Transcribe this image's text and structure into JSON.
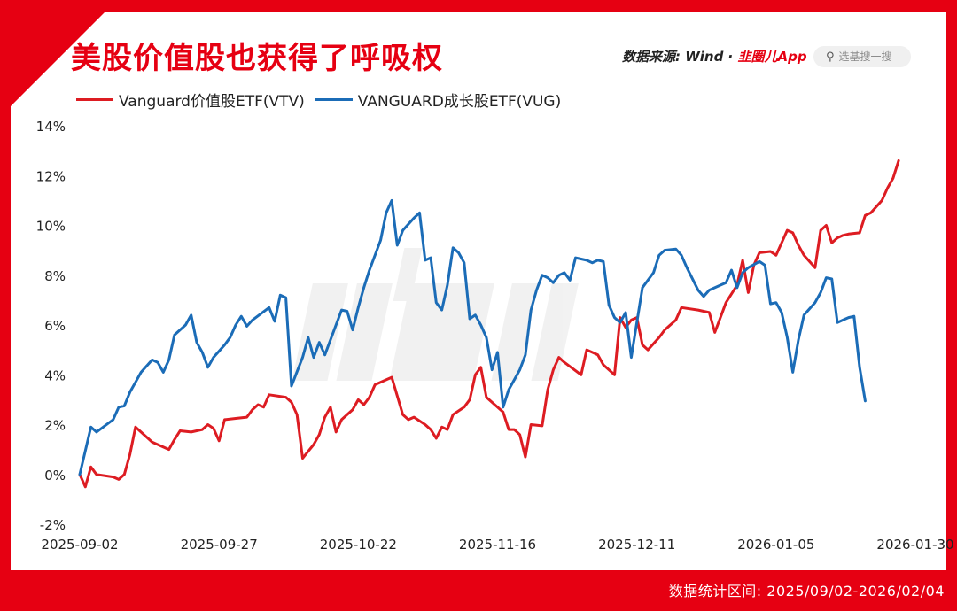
{
  "header": {
    "title": "美股价值股也获得了呼吸权",
    "source_prefix": "数据来源: Wind · ",
    "source_brand": "韭圈儿App",
    "search_placeholder": "选基搜一搜",
    "search_icon": "search-icon"
  },
  "footer": {
    "range_text": "数据统计区间: 2025/09/02-2026/02/04"
  },
  "colors": {
    "brand_red": "#e60012",
    "vtv": "#dd1c22",
    "vug": "#1b6cb7"
  },
  "chart_data": {
    "type": "line",
    "x_ticks": [
      "2025-09-02",
      "2025-09-27",
      "2025-10-22",
      "2025-11-16",
      "2025-12-11",
      "2026-01-05",
      "2026-01-30"
    ],
    "y_ticks": [
      "14%",
      "12%",
      "10%",
      "8%",
      "6%",
      "4%",
      "2%",
      "0%",
      "-2%"
    ],
    "ylim": [
      -2,
      14
    ],
    "x_range": [
      "2025-09-02",
      "2026-01-30"
    ],
    "grid": false,
    "legend_position": "top-left",
    "series": [
      {
        "name": "Vanguard价值股ETF(VTV)",
        "color": "#dd1c22",
        "points": [
          [
            "2025-09-02",
            0.0
          ],
          [
            "2025-09-03",
            -0.5
          ],
          [
            "2025-09-04",
            0.3
          ],
          [
            "2025-09-05",
            0.0
          ],
          [
            "2025-09-08",
            -0.1
          ],
          [
            "2025-09-09",
            -0.2
          ],
          [
            "2025-09-10",
            0.0
          ],
          [
            "2025-09-11",
            0.8
          ],
          [
            "2025-09-12",
            1.9
          ],
          [
            "2025-09-15",
            1.3
          ],
          [
            "2025-09-18",
            1.0
          ],
          [
            "2025-09-19",
            1.4
          ],
          [
            "2025-09-20",
            1.75
          ],
          [
            "2025-09-22",
            1.7
          ],
          [
            "2025-09-24",
            1.8
          ],
          [
            "2025-09-25",
            2.0
          ],
          [
            "2025-09-26",
            1.85
          ],
          [
            "2025-09-27",
            1.35
          ],
          [
            "2025-09-28",
            2.2
          ],
          [
            "2025-09-30",
            2.25
          ],
          [
            "2025-10-02",
            2.3
          ],
          [
            "2025-10-03",
            2.6
          ],
          [
            "2025-10-04",
            2.8
          ],
          [
            "2025-10-05",
            2.7
          ],
          [
            "2025-10-06",
            3.2
          ],
          [
            "2025-10-09",
            3.1
          ],
          [
            "2025-10-10",
            2.9
          ],
          [
            "2025-10-11",
            2.4
          ],
          [
            "2025-10-12",
            0.65
          ],
          [
            "2025-10-14",
            1.2
          ],
          [
            "2025-10-15",
            1.6
          ],
          [
            "2025-10-16",
            2.3
          ],
          [
            "2025-10-17",
            2.7
          ],
          [
            "2025-10-18",
            1.7
          ],
          [
            "2025-10-19",
            2.2
          ],
          [
            "2025-10-21",
            2.6
          ],
          [
            "2025-10-22",
            3.0
          ],
          [
            "2025-10-23",
            2.8
          ],
          [
            "2025-10-24",
            3.1
          ],
          [
            "2025-10-25",
            3.6
          ],
          [
            "2025-10-27",
            3.8
          ],
          [
            "2025-10-28",
            3.9
          ],
          [
            "2025-10-30",
            2.4
          ],
          [
            "2025-10-31",
            2.2
          ],
          [
            "2025-11-01",
            2.3
          ],
          [
            "2025-11-03",
            2.0
          ],
          [
            "2025-11-04",
            1.8
          ],
          [
            "2025-11-05",
            1.45
          ],
          [
            "2025-11-06",
            1.9
          ],
          [
            "2025-11-07",
            1.8
          ],
          [
            "2025-11-08",
            2.4
          ],
          [
            "2025-11-10",
            2.7
          ],
          [
            "2025-11-11",
            3.0
          ],
          [
            "2025-11-12",
            4.0
          ],
          [
            "2025-11-13",
            4.3
          ],
          [
            "2025-11-14",
            3.1
          ],
          [
            "2025-11-15",
            2.9
          ],
          [
            "2025-11-17",
            2.5
          ],
          [
            "2025-11-18",
            1.8
          ],
          [
            "2025-11-19",
            1.8
          ],
          [
            "2025-11-20",
            1.6
          ],
          [
            "2025-11-21",
            0.7
          ],
          [
            "2025-11-22",
            2.0
          ],
          [
            "2025-11-24",
            1.95
          ],
          [
            "2025-11-25",
            3.4
          ],
          [
            "2025-11-26",
            4.2
          ],
          [
            "2025-11-27",
            4.7
          ],
          [
            "2025-11-28",
            4.5
          ],
          [
            "2025-12-01",
            4.0
          ],
          [
            "2025-12-02",
            5.0
          ],
          [
            "2025-12-03",
            4.9
          ],
          [
            "2025-12-04",
            4.8
          ],
          [
            "2025-12-05",
            4.4
          ],
          [
            "2025-12-06",
            4.2
          ],
          [
            "2025-12-07",
            4.0
          ],
          [
            "2025-12-08",
            6.3
          ],
          [
            "2025-12-09",
            5.9
          ],
          [
            "2025-12-10",
            6.2
          ],
          [
            "2025-12-11",
            6.3
          ],
          [
            "2025-12-12",
            5.2
          ],
          [
            "2025-12-13",
            5.0
          ],
          [
            "2025-12-15",
            5.5
          ],
          [
            "2025-12-16",
            5.8
          ],
          [
            "2025-12-17",
            6.0
          ],
          [
            "2025-12-18",
            6.2
          ],
          [
            "2025-12-19",
            6.7
          ],
          [
            "2025-12-22",
            6.6
          ],
          [
            "2025-12-24",
            6.5
          ],
          [
            "2025-12-25",
            5.7
          ],
          [
            "2025-12-26",
            6.3
          ],
          [
            "2025-12-27",
            6.9
          ],
          [
            "2025-12-29",
            7.6
          ],
          [
            "2025-12-30",
            8.6
          ],
          [
            "2025-12-31",
            7.3
          ],
          [
            "2026-01-01",
            8.4
          ],
          [
            "2026-01-02",
            8.9
          ],
          [
            "2026-01-04",
            8.95
          ],
          [
            "2026-01-05",
            8.8
          ],
          [
            "2026-01-06",
            9.3
          ],
          [
            "2026-01-07",
            9.8
          ],
          [
            "2026-01-08",
            9.7
          ],
          [
            "2026-01-09",
            9.2
          ],
          [
            "2026-01-10",
            8.8
          ],
          [
            "2026-01-12",
            8.3
          ],
          [
            "2026-01-13",
            9.8
          ],
          [
            "2026-01-14",
            10.0
          ],
          [
            "2026-01-15",
            9.3
          ],
          [
            "2026-01-16",
            9.5
          ],
          [
            "2026-01-17",
            9.6
          ],
          [
            "2026-01-18",
            9.65
          ],
          [
            "2026-01-20",
            9.7
          ],
          [
            "2026-01-21",
            10.4
          ],
          [
            "2026-01-22",
            10.5
          ],
          [
            "2026-01-24",
            11.0
          ],
          [
            "2026-01-25",
            11.5
          ],
          [
            "2026-01-26",
            11.9
          ],
          [
            "2026-01-27",
            12.6
          ]
        ]
      },
      {
        "name": "VANGUARD成长股ETF(VUG)",
        "color": "#1b6cb7",
        "points": [
          [
            "2025-09-02",
            0.0
          ],
          [
            "2025-09-04",
            1.9
          ],
          [
            "2025-09-05",
            1.7
          ],
          [
            "2025-09-08",
            2.2
          ],
          [
            "2025-09-09",
            2.7
          ],
          [
            "2025-09-10",
            2.75
          ],
          [
            "2025-09-11",
            3.3
          ],
          [
            "2025-09-12",
            3.7
          ],
          [
            "2025-09-13",
            4.1
          ],
          [
            "2025-09-15",
            4.6
          ],
          [
            "2025-09-16",
            4.5
          ],
          [
            "2025-09-17",
            4.1
          ],
          [
            "2025-09-18",
            4.6
          ],
          [
            "2025-09-19",
            5.6
          ],
          [
            "2025-09-21",
            6.0
          ],
          [
            "2025-09-22",
            6.4
          ],
          [
            "2025-09-23",
            5.3
          ],
          [
            "2025-09-24",
            4.9
          ],
          [
            "2025-09-25",
            4.3
          ],
          [
            "2025-09-26",
            4.7
          ],
          [
            "2025-09-28",
            5.2
          ],
          [
            "2025-09-29",
            5.5
          ],
          [
            "2025-09-30",
            6.0
          ],
          [
            "2025-10-01",
            6.35
          ],
          [
            "2025-10-02",
            5.95
          ],
          [
            "2025-10-03",
            6.2
          ],
          [
            "2025-10-06",
            6.7
          ],
          [
            "2025-10-07",
            6.15
          ],
          [
            "2025-10-08",
            7.2
          ],
          [
            "2025-10-09",
            7.1
          ],
          [
            "2025-10-10",
            3.55
          ],
          [
            "2025-10-12",
            4.7
          ],
          [
            "2025-10-13",
            5.5
          ],
          [
            "2025-10-14",
            4.7
          ],
          [
            "2025-10-15",
            5.3
          ],
          [
            "2025-10-16",
            4.8
          ],
          [
            "2025-10-17",
            5.4
          ],
          [
            "2025-10-19",
            6.6
          ],
          [
            "2025-10-20",
            6.55
          ],
          [
            "2025-10-21",
            5.8
          ],
          [
            "2025-10-22",
            6.7
          ],
          [
            "2025-10-23",
            7.5
          ],
          [
            "2025-10-24",
            8.2
          ],
          [
            "2025-10-26",
            9.4
          ],
          [
            "2025-10-27",
            10.5
          ],
          [
            "2025-10-28",
            11.0
          ],
          [
            "2025-10-29",
            9.2
          ],
          [
            "2025-10-30",
            9.8
          ],
          [
            "2025-11-01",
            10.3
          ],
          [
            "2025-11-02",
            10.5
          ],
          [
            "2025-11-03",
            8.6
          ],
          [
            "2025-11-04",
            8.7
          ],
          [
            "2025-11-05",
            6.9
          ],
          [
            "2025-11-06",
            6.6
          ],
          [
            "2025-11-07",
            7.6
          ],
          [
            "2025-11-08",
            9.1
          ],
          [
            "2025-11-09",
            8.9
          ],
          [
            "2025-11-10",
            8.5
          ],
          [
            "2025-11-11",
            6.25
          ],
          [
            "2025-11-12",
            6.4
          ],
          [
            "2025-11-13",
            6.0
          ],
          [
            "2025-11-14",
            5.5
          ],
          [
            "2025-11-15",
            4.2
          ],
          [
            "2025-11-16",
            4.9
          ],
          [
            "2025-11-17",
            2.7
          ],
          [
            "2025-11-18",
            3.4
          ],
          [
            "2025-11-19",
            3.8
          ],
          [
            "2025-11-20",
            4.2
          ],
          [
            "2025-11-21",
            4.8
          ],
          [
            "2025-11-22",
            6.6
          ],
          [
            "2025-11-23",
            7.4
          ],
          [
            "2025-11-24",
            8.0
          ],
          [
            "2025-11-25",
            7.9
          ],
          [
            "2025-11-26",
            7.7
          ],
          [
            "2025-11-27",
            8.0
          ],
          [
            "2025-11-28",
            8.1
          ],
          [
            "2025-11-29",
            7.8
          ],
          [
            "2025-11-30",
            8.7
          ],
          [
            "2025-12-02",
            8.6
          ],
          [
            "2025-12-03",
            8.5
          ],
          [
            "2025-12-04",
            8.6
          ],
          [
            "2025-12-05",
            8.55
          ],
          [
            "2025-12-06",
            6.8
          ],
          [
            "2025-12-07",
            6.3
          ],
          [
            "2025-12-08",
            6.1
          ],
          [
            "2025-12-09",
            6.5
          ],
          [
            "2025-12-10",
            4.7
          ],
          [
            "2025-12-12",
            7.5
          ],
          [
            "2025-12-13",
            7.8
          ],
          [
            "2025-12-14",
            8.1
          ],
          [
            "2025-12-15",
            8.8
          ],
          [
            "2025-12-16",
            9.0
          ],
          [
            "2025-12-18",
            9.05
          ],
          [
            "2025-12-19",
            8.8
          ],
          [
            "2025-12-20",
            8.3
          ],
          [
            "2025-12-22",
            7.4
          ],
          [
            "2025-12-23",
            7.15
          ],
          [
            "2025-12-24",
            7.4
          ],
          [
            "2025-12-26",
            7.6
          ],
          [
            "2025-12-27",
            7.7
          ],
          [
            "2025-12-28",
            8.2
          ],
          [
            "2025-12-29",
            7.5
          ],
          [
            "2025-12-30",
            8.1
          ],
          [
            "2025-12-31",
            8.3
          ],
          [
            "2026-01-02",
            8.55
          ],
          [
            "2026-01-03",
            8.4
          ],
          [
            "2026-01-04",
            6.85
          ],
          [
            "2026-01-05",
            6.9
          ],
          [
            "2026-01-06",
            6.5
          ],
          [
            "2026-01-07",
            5.5
          ],
          [
            "2026-01-08",
            4.1
          ],
          [
            "2026-01-09",
            5.4
          ],
          [
            "2026-01-10",
            6.4
          ],
          [
            "2026-01-12",
            6.9
          ],
          [
            "2026-01-13",
            7.3
          ],
          [
            "2026-01-14",
            7.9
          ],
          [
            "2026-01-15",
            7.85
          ],
          [
            "2026-01-16",
            6.1
          ],
          [
            "2026-01-17",
            6.2
          ],
          [
            "2026-01-18",
            6.3
          ],
          [
            "2026-01-19",
            6.35
          ],
          [
            "2026-01-20",
            4.3
          ],
          [
            "2026-01-21",
            2.95
          ]
        ]
      }
    ]
  }
}
